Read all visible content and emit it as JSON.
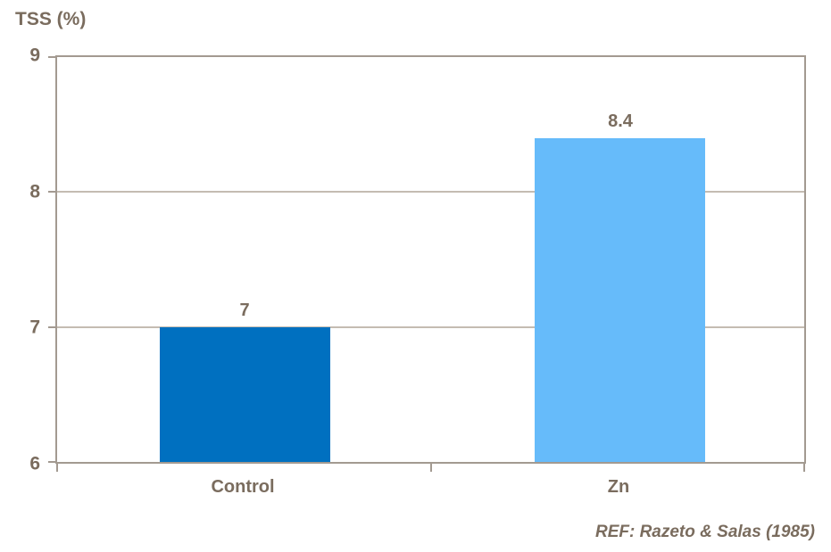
{
  "header": {
    "title": "TSS (%)"
  },
  "footer": {
    "reference": "REF: Razeto & Salas (1985)"
  },
  "chart_data": {
    "type": "bar",
    "title": "TSS (%)",
    "categories": [
      "Control",
      "Zn"
    ],
    "values": [
      7,
      8.4
    ],
    "value_labels": [
      "7",
      "8.4"
    ],
    "bar_colors": [
      "#0070C0",
      "#66BBFA"
    ],
    "xlabel": "",
    "ylabel": "TSS (%)",
    "ylim": [
      6,
      9
    ],
    "yticks": [
      9,
      8,
      7,
      6
    ],
    "grid": true,
    "legend": false,
    "annotation": "REF: Razeto & Salas (1985)",
    "text_color": "#7A6C5E",
    "axis_color": "#A39A91",
    "gridline_color": "#C4BCB2",
    "background_color": "#FFFFFF"
  }
}
